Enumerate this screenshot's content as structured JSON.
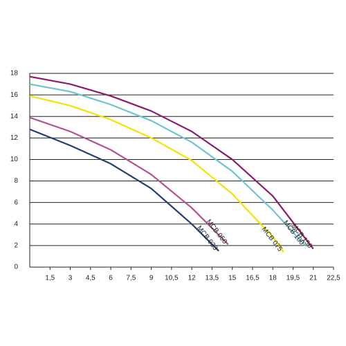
{
  "chart_data": {
    "type": "line",
    "xlim": [
      0,
      22.5
    ],
    "ylim": [
      0,
      18
    ],
    "xticks": [
      {
        "value": 1.5,
        "label": "1,5"
      },
      3,
      {
        "value": 4.5,
        "label": "4,5"
      },
      6,
      {
        "value": 7.5,
        "label": "7,5"
      },
      9,
      {
        "value": 10.5,
        "label": "10,5"
      },
      12,
      {
        "value": 13.5,
        "label": "13,5"
      },
      15,
      {
        "value": 16.5,
        "label": "16,5"
      },
      18,
      {
        "value": 19.5,
        "label": "19,5"
      },
      21,
      {
        "value": 22.5,
        "label": "22,5"
      }
    ],
    "yticks": [
      0,
      2,
      4,
      6,
      8,
      10,
      12,
      14,
      16,
      18
    ],
    "grid": true,
    "series": [
      {
        "name": "MCB 033",
        "color": "#1f3f73",
        "x": [
          0,
          3,
          6,
          9,
          12,
          14
        ],
        "values": [
          12.8,
          11.3,
          9.6,
          7.3,
          4.0,
          1.5
        ]
      },
      {
        "name": "MCB 050",
        "color": "#b5508f",
        "x": [
          0,
          3,
          6,
          9,
          12,
          14.7
        ],
        "values": [
          13.9,
          12.6,
          10.9,
          8.6,
          5.5,
          2.1
        ]
      },
      {
        "name": "MCB 075",
        "color": "#f2e400",
        "x": [
          0,
          3,
          6,
          9,
          12,
          15,
          18,
          18.8
        ],
        "values": [
          15.9,
          15.0,
          13.7,
          12.0,
          9.9,
          6.8,
          2.8,
          1.4
        ]
      },
      {
        "name": "MCB 100",
        "color": "#6cc5d2",
        "x": [
          0,
          3,
          6,
          9,
          12,
          15,
          18,
          20.4
        ],
        "values": [
          17.0,
          16.3,
          15.1,
          13.6,
          11.6,
          8.9,
          5.3,
          2.0
        ]
      },
      {
        "name": "MCB 150",
        "color": "#8b1a6b",
        "x": [
          0,
          3,
          6,
          9,
          12,
          15,
          18,
          21
        ],
        "values": [
          17.7,
          17.0,
          15.9,
          14.5,
          12.6,
          10.0,
          6.6,
          1.7
        ]
      }
    ]
  }
}
